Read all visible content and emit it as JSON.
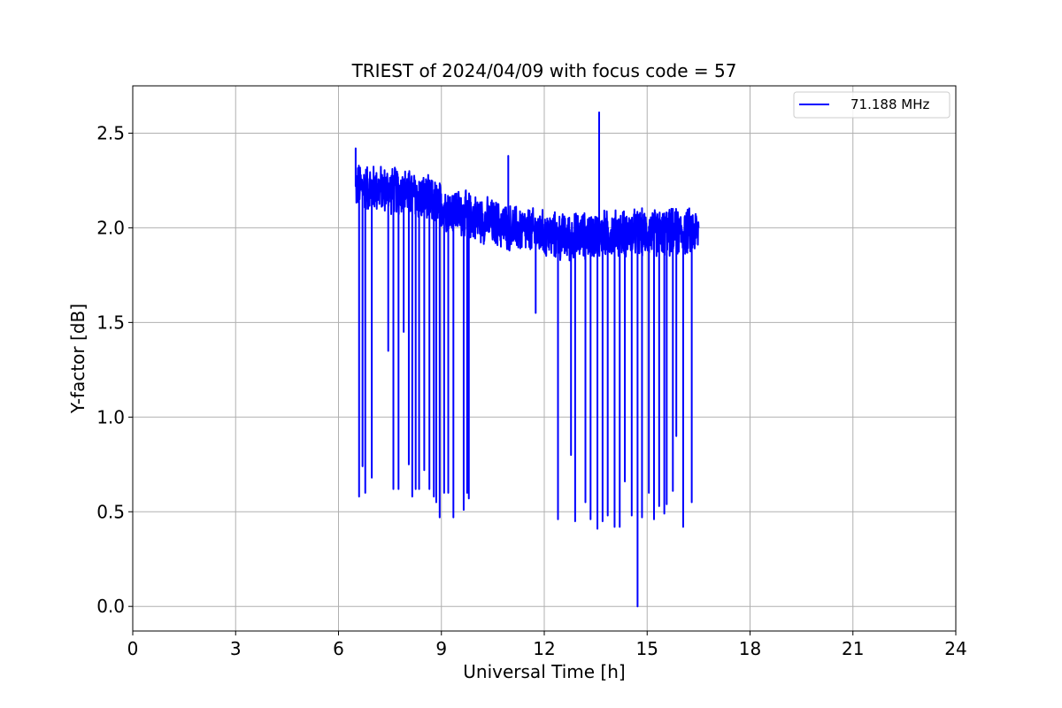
{
  "chart_data": {
    "type": "line",
    "title": "TRIEST of 2024/04/09 with focus code = 57",
    "xlabel": "Universal Time [h]",
    "ylabel": "Y-factor [dB]",
    "xlim": [
      0,
      24
    ],
    "ylim": [
      -0.13,
      2.75
    ],
    "x_ticks": [
      0,
      3,
      6,
      9,
      12,
      15,
      18,
      21,
      24
    ],
    "x_tick_labels": [
      "0",
      "3",
      "6",
      "9",
      "12",
      "15",
      "18",
      "21",
      "24"
    ],
    "y_ticks": [
      0.0,
      0.5,
      1.0,
      1.5,
      2.0,
      2.5
    ],
    "y_tick_labels": [
      "0.0",
      "0.5",
      "1.0",
      "1.5",
      "2.0",
      "2.5"
    ],
    "grid": true,
    "legend_position": "top-right",
    "series": [
      {
        "name": "71.188 MHz",
        "color": "#0000ff",
        "x_range": [
          6.5,
          16.5
        ],
        "baseline_trend": [
          [
            6.5,
            2.22
          ],
          [
            8.0,
            2.19
          ],
          [
            9.5,
            2.08
          ],
          [
            11.0,
            2.0
          ],
          [
            12.5,
            1.95
          ],
          [
            14.0,
            1.97
          ],
          [
            16.5,
            1.98
          ]
        ],
        "noise_amplitude": 0.14,
        "spikes": [
          {
            "x": 6.5,
            "y": 2.42
          },
          {
            "x": 10.95,
            "y": 2.38
          },
          {
            "x": 13.6,
            "y": 2.61
          }
        ],
        "dips": [
          {
            "x": 6.6,
            "y": 0.58
          },
          {
            "x": 6.7,
            "y": 0.74
          },
          {
            "x": 6.78,
            "y": 0.6
          },
          {
            "x": 6.97,
            "y": 0.68
          },
          {
            "x": 7.45,
            "y": 1.35
          },
          {
            "x": 7.6,
            "y": 0.62
          },
          {
            "x": 7.75,
            "y": 0.62
          },
          {
            "x": 7.9,
            "y": 1.45
          },
          {
            "x": 8.05,
            "y": 0.75
          },
          {
            "x": 8.15,
            "y": 0.58
          },
          {
            "x": 8.25,
            "y": 0.62
          },
          {
            "x": 8.35,
            "y": 0.62
          },
          {
            "x": 8.5,
            "y": 0.72
          },
          {
            "x": 8.65,
            "y": 0.62
          },
          {
            "x": 8.78,
            "y": 0.58
          },
          {
            "x": 8.85,
            "y": 0.55
          },
          {
            "x": 8.95,
            "y": 0.47
          },
          {
            "x": 9.08,
            "y": 0.6
          },
          {
            "x": 9.2,
            "y": 0.6
          },
          {
            "x": 9.35,
            "y": 0.47
          },
          {
            "x": 9.65,
            "y": 0.51
          },
          {
            "x": 9.75,
            "y": 0.6
          },
          {
            "x": 9.8,
            "y": 0.57
          },
          {
            "x": 11.75,
            "y": 1.55
          },
          {
            "x": 12.4,
            "y": 0.46
          },
          {
            "x": 12.78,
            "y": 0.8
          },
          {
            "x": 12.9,
            "y": 0.45
          },
          {
            "x": 13.2,
            "y": 0.55
          },
          {
            "x": 13.35,
            "y": 0.46
          },
          {
            "x": 13.55,
            "y": 0.41
          },
          {
            "x": 13.7,
            "y": 0.45
          },
          {
            "x": 13.85,
            "y": 0.48
          },
          {
            "x": 14.05,
            "y": 0.42
          },
          {
            "x": 14.2,
            "y": 0.42
          },
          {
            "x": 14.35,
            "y": 0.66
          },
          {
            "x": 14.55,
            "y": 0.48
          },
          {
            "x": 14.72,
            "y": 0.0
          },
          {
            "x": 14.85,
            "y": 0.47
          },
          {
            "x": 15.05,
            "y": 0.6
          },
          {
            "x": 15.2,
            "y": 0.46
          },
          {
            "x": 15.35,
            "y": 0.53
          },
          {
            "x": 15.5,
            "y": 0.49
          },
          {
            "x": 15.57,
            "y": 0.54
          },
          {
            "x": 15.75,
            "y": 0.61
          },
          {
            "x": 15.85,
            "y": 0.9
          },
          {
            "x": 16.05,
            "y": 0.42
          },
          {
            "x": 16.3,
            "y": 0.55
          }
        ]
      }
    ]
  }
}
